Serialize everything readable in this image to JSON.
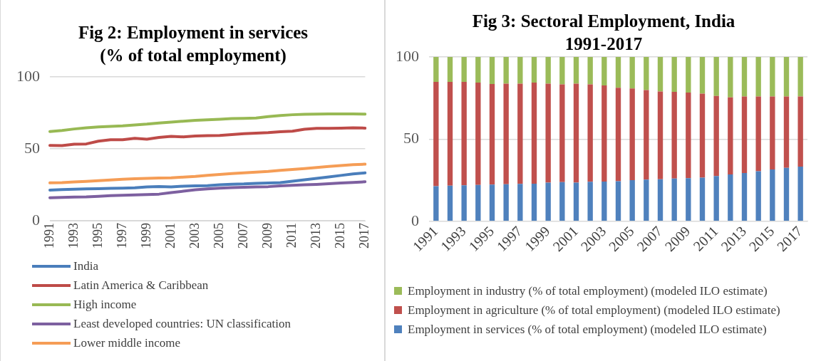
{
  "chart_data": [
    {
      "type": "line",
      "title": "Fig 2: Employment in services (% of total employment)",
      "categories": [
        "1991",
        null,
        "1993",
        null,
        "1995",
        null,
        "1997",
        null,
        "1999",
        null,
        "2001",
        null,
        "2003",
        null,
        "2005",
        null,
        "2007",
        null,
        "2009",
        null,
        "2011",
        null,
        "2013",
        null,
        "2015",
        null,
        "2017"
      ],
      "series": [
        {
          "name": "India",
          "color": "#4a7ebb",
          "values": [
            21.3,
            21.7,
            21.9,
            22.1,
            22.3,
            22.5,
            22.7,
            22.9,
            23.5,
            23.8,
            23.5,
            24.0,
            24.2,
            24.4,
            25.0,
            25.4,
            25.6,
            26.0,
            26.2,
            26.5,
            27.5,
            28.5,
            29.4,
            30.4,
            31.5,
            32.5,
            33.3
          ]
        },
        {
          "name": "Latin America & Caribbean",
          "color": "#be4b48",
          "values": [
            52.4,
            52.2,
            53.2,
            53.4,
            55.3,
            56.3,
            56.3,
            57.3,
            56.7,
            57.9,
            58.7,
            58.3,
            58.9,
            59.1,
            59.3,
            59.9,
            60.5,
            60.9,
            61.3,
            61.9,
            62.3,
            63.6,
            64.2,
            64.2,
            64.4,
            64.6,
            64.4
          ]
        },
        {
          "name": "High income",
          "color": "#98b954",
          "values": [
            62.0,
            62.8,
            63.8,
            64.6,
            65.2,
            65.6,
            66.0,
            66.6,
            67.2,
            68.0,
            68.6,
            69.2,
            69.8,
            70.2,
            70.6,
            71.0,
            71.2,
            71.4,
            72.4,
            73.2,
            73.7,
            74.0,
            74.1,
            74.2,
            74.2,
            74.2,
            74.1
          ]
        },
        {
          "name": "Least developed countries: UN classification",
          "color": "#7d60a0",
          "values": [
            16.0,
            16.2,
            16.4,
            16.6,
            17.0,
            17.5,
            17.7,
            17.9,
            18.2,
            18.5,
            19.6,
            20.5,
            21.5,
            22.2,
            22.6,
            23.0,
            23.3,
            23.5,
            23.7,
            24.3,
            24.6,
            25.0,
            25.3,
            25.7,
            26.2,
            26.6,
            27.1
          ]
        },
        {
          "name": "Lower middle income",
          "color": "#f59d56",
          "values": [
            26.3,
            26.5,
            27.0,
            27.4,
            27.9,
            28.3,
            28.8,
            29.2,
            29.5,
            29.7,
            29.8,
            30.3,
            30.8,
            31.6,
            32.2,
            32.8,
            33.3,
            33.8,
            34.3,
            35.0,
            35.7,
            36.3,
            37.0,
            37.7,
            38.4,
            39.0,
            39.3
          ]
        }
      ],
      "ylim": [
        0,
        100
      ],
      "yticks": [
        0,
        50,
        100
      ],
      "grid": "y",
      "legend": "bottom"
    },
    {
      "type": "bar",
      "stacked": true,
      "title": "Fig 3: Sectoral Employment, India 1991-2017",
      "categories": [
        "1991",
        null,
        "1993",
        null,
        "1995",
        null,
        "1997",
        null,
        "1999",
        null,
        "2001",
        null,
        "2003",
        null,
        "2005",
        null,
        "2007",
        null,
        "2009",
        null,
        "2011",
        null,
        "2013",
        null,
        "2015",
        null,
        "2017"
      ],
      "series": [
        {
          "name": "Employment in services (% of total employment) (modeled ILO estimate)",
          "color": "#4f81bd",
          "values": [
            21.3,
            21.7,
            21.9,
            22.1,
            22.3,
            22.5,
            22.7,
            22.9,
            23.5,
            23.8,
            23.5,
            24.0,
            24.2,
            24.4,
            25.0,
            25.4,
            25.6,
            26.0,
            26.2,
            26.5,
            27.5,
            28.5,
            29.4,
            30.4,
            31.5,
            32.5,
            33.3
          ]
        },
        {
          "name": "Employment in agriculture (% of total employment) (modeled ILO estimate)",
          "color": "#c0504d",
          "values": [
            63.5,
            63.1,
            62.9,
            62.3,
            61.2,
            61.3,
            61.1,
            61.5,
            60.3,
            59.5,
            60.3,
            59.3,
            58.5,
            56.9,
            55.8,
            54.4,
            53.4,
            52.8,
            52.1,
            51.2,
            48.8,
            46.9,
            46.5,
            45.5,
            44.4,
            43.4,
            42.6
          ]
        },
        {
          "name": "Employment in industry (% of total employment) (modeled ILO estimate)",
          "color": "#9bbb59",
          "values": [
            15.2,
            15.2,
            15.2,
            15.6,
            16.5,
            16.2,
            16.2,
            15.6,
            16.2,
            16.7,
            16.2,
            16.7,
            17.3,
            18.7,
            19.2,
            20.2,
            21.0,
            21.2,
            21.7,
            22.3,
            23.7,
            24.6,
            24.1,
            24.1,
            24.1,
            24.1,
            24.1
          ]
        }
      ],
      "ylim": [
        0,
        100
      ],
      "yticks": [
        0,
        50,
        100
      ],
      "grid": "y",
      "legend": "bottom"
    }
  ]
}
